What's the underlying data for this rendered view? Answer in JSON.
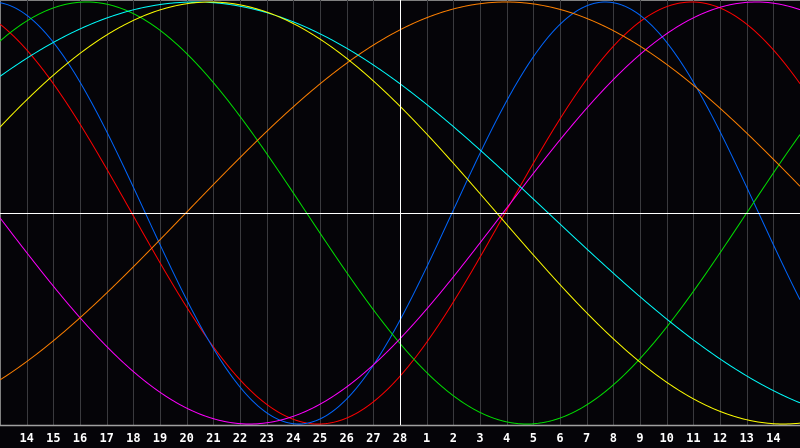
{
  "chart_data": {
    "type": "line",
    "title": "",
    "xlabel": "",
    "ylabel": "",
    "x_tick_labels": [
      "14",
      "15",
      "16",
      "17",
      "18",
      "19",
      "20",
      "21",
      "22",
      "23",
      "24",
      "25",
      "26",
      "27",
      "28",
      "1",
      "2",
      "3",
      "4",
      "5",
      "6",
      "7",
      "8",
      "9",
      "10",
      "11",
      "12",
      "13",
      "14"
    ],
    "today_tick": "28",
    "ylim": [
      -1,
      1
    ],
    "grid": true,
    "legend": "none",
    "background": "#050408",
    "grid_color": "#3a3a3e",
    "axis_color": "#ffffff",
    "series": [
      {
        "color": "#ff0000",
        "period_days": 28,
        "zero_up_tick_index": 17.94
      },
      {
        "color": "#0066ff",
        "period_days": 23,
        "zero_up_tick_index": 15.95
      },
      {
        "color": "#00e000",
        "period_days": 33,
        "zero_up_tick_index": 27.0
      },
      {
        "color": "#ff00ff",
        "period_days": 38,
        "zero_up_tick_index": 17.86
      },
      {
        "color": "#ff8000",
        "period_days": 48,
        "zero_up_tick_index": 5.97
      },
      {
        "color": "#00ffff",
        "period_days": 53,
        "zero_up_tick_index": -6.94
      },
      {
        "color": "#ffff00",
        "period_days": 43,
        "zero_up_tick_index": -3.87
      }
    ]
  }
}
